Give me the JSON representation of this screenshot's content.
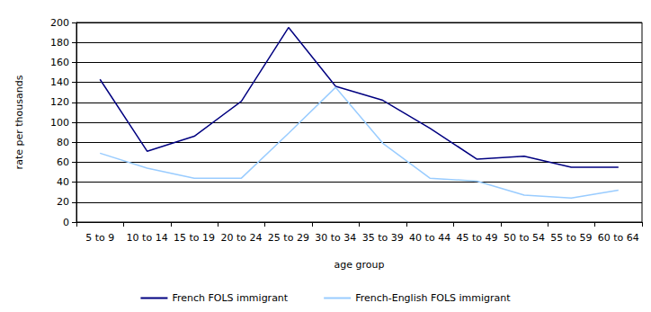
{
  "chart_data": {
    "type": "line",
    "x_label": "age group",
    "y_label": "rate per thousands",
    "categories": [
      "5 to 9",
      "10 to 14",
      "15 to 19",
      "20 to 24",
      "25 to 29",
      "30 to 34",
      "35 to 39",
      "40 to 44",
      "45 to 49",
      "50 to 54",
      "55 to 59",
      "60 to 64"
    ],
    "series": [
      {
        "name": "French FOLS immigrant",
        "color": "#000080",
        "values": [
          143,
          71,
          86,
          121,
          195,
          136,
          122,
          94,
          63,
          66,
          55,
          55
        ]
      },
      {
        "name": "French-English FOLS immigrant",
        "color": "#99ccff",
        "values": [
          69,
          54,
          44,
          44,
          89,
          135,
          79,
          44,
          41,
          27,
          24,
          32
        ]
      }
    ],
    "ylim": [
      0,
      200
    ],
    "yticks": [
      0,
      20,
      40,
      60,
      80,
      100,
      120,
      140,
      160,
      180,
      200
    ],
    "grid": true,
    "legend": "bottom"
  }
}
